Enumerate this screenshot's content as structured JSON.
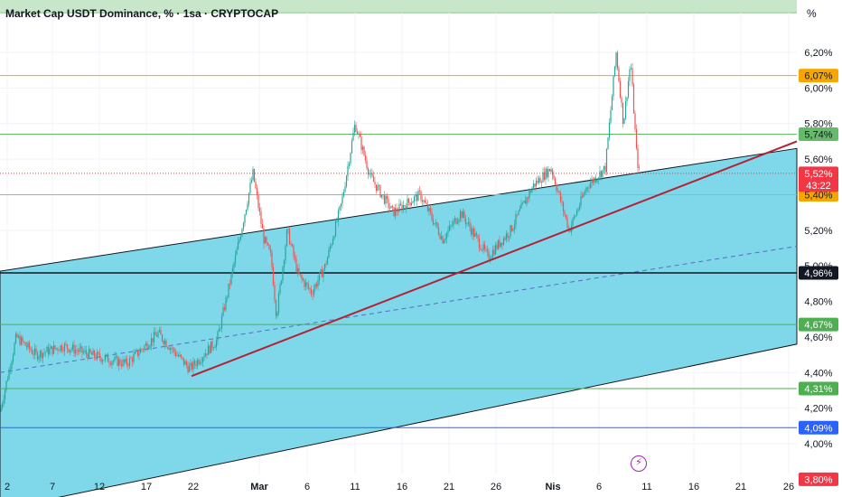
{
  "header": {
    "title": "Market Cap USDT Dominance, % · 1sa · CRYPTOCAP",
    "unit": "%"
  },
  "chart_data": {
    "type": "line",
    "title": "Market Cap USDT Dominance, % · 1sa · CRYPTOCAP",
    "ylim": [
      3.76,
      6.34
    ],
    "y_ticks": [
      "6,20%",
      "6,00%",
      "5,80%",
      "5,60%",
      "5,20%",
      "5,00%",
      "4,80%",
      "4,60%",
      "4,40%",
      "4,20%",
      "4,00%"
    ],
    "x_ticks": [
      "2",
      "7",
      "12",
      "17",
      "22",
      "Mar",
      "6",
      "11",
      "16",
      "21",
      "26",
      "Nis",
      "6",
      "11",
      "16",
      "21",
      "26"
    ],
    "price_levels": [
      {
        "value": 6.07,
        "label": "6,07%",
        "color": "#f7a600",
        "badge_text": "#131722"
      },
      {
        "value": 5.74,
        "label": "5,74%",
        "color": "#66bb6a",
        "badge_text": "#131722"
      },
      {
        "value": 5.4,
        "label": "5,40%",
        "color": "#f7a600",
        "badge_text": "#131722"
      },
      {
        "value": 4.96,
        "label": "4,96%",
        "color": "#131722",
        "badge_text": "#ffffff"
      },
      {
        "value": 4.67,
        "label": "4,67%",
        "color": "#4caf50",
        "badge_text": "#ffffff"
      },
      {
        "value": 4.31,
        "label": "4,31%",
        "color": "#4caf50",
        "badge_text": "#ffffff"
      },
      {
        "value": 4.09,
        "label": "4,09%",
        "color": "#2962ff",
        "badge_text": "#ffffff"
      }
    ],
    "current_price": {
      "value": 5.52,
      "label": "5,52%",
      "countdown": "43:22",
      "color": "#f23645"
    },
    "low_marker": {
      "value": 3.8,
      "label": "3,80%",
      "color": "#f23645"
    },
    "colors": {
      "channel_fill": "#7fd8ea",
      "trendline": "#b22234",
      "up": "#26a69a",
      "down": "#ef5350",
      "grid": "#f0f3fa"
    },
    "series_anchors": [
      [
        0,
        4.18
      ],
      [
        18,
        4.6
      ],
      [
        40,
        4.5
      ],
      [
        70,
        4.55
      ],
      [
        100,
        4.5
      ],
      [
        140,
        4.45
      ],
      [
        175,
        4.62
      ],
      [
        210,
        4.42
      ],
      [
        240,
        4.58
      ],
      [
        252,
        4.85
      ],
      [
        265,
        5.15
      ],
      [
        280,
        5.52
      ],
      [
        292,
        5.15
      ],
      [
        300,
        5.05
      ],
      [
        306,
        4.72
      ],
      [
        318,
        5.2
      ],
      [
        330,
        4.95
      ],
      [
        345,
        4.85
      ],
      [
        360,
        5.0
      ],
      [
        378,
        5.35
      ],
      [
        393,
        5.8
      ],
      [
        410,
        5.5
      ],
      [
        435,
        5.3
      ],
      [
        465,
        5.4
      ],
      [
        490,
        5.15
      ],
      [
        510,
        5.3
      ],
      [
        540,
        5.05
      ],
      [
        565,
        5.2
      ],
      [
        590,
        5.45
      ],
      [
        610,
        5.55
      ],
      [
        630,
        5.2
      ],
      [
        650,
        5.45
      ],
      [
        670,
        5.55
      ],
      [
        682,
        6.2
      ],
      [
        690,
        5.8
      ],
      [
        698,
        6.15
      ],
      [
        705,
        5.6
      ],
      [
        708,
        5.52
      ]
    ]
  }
}
